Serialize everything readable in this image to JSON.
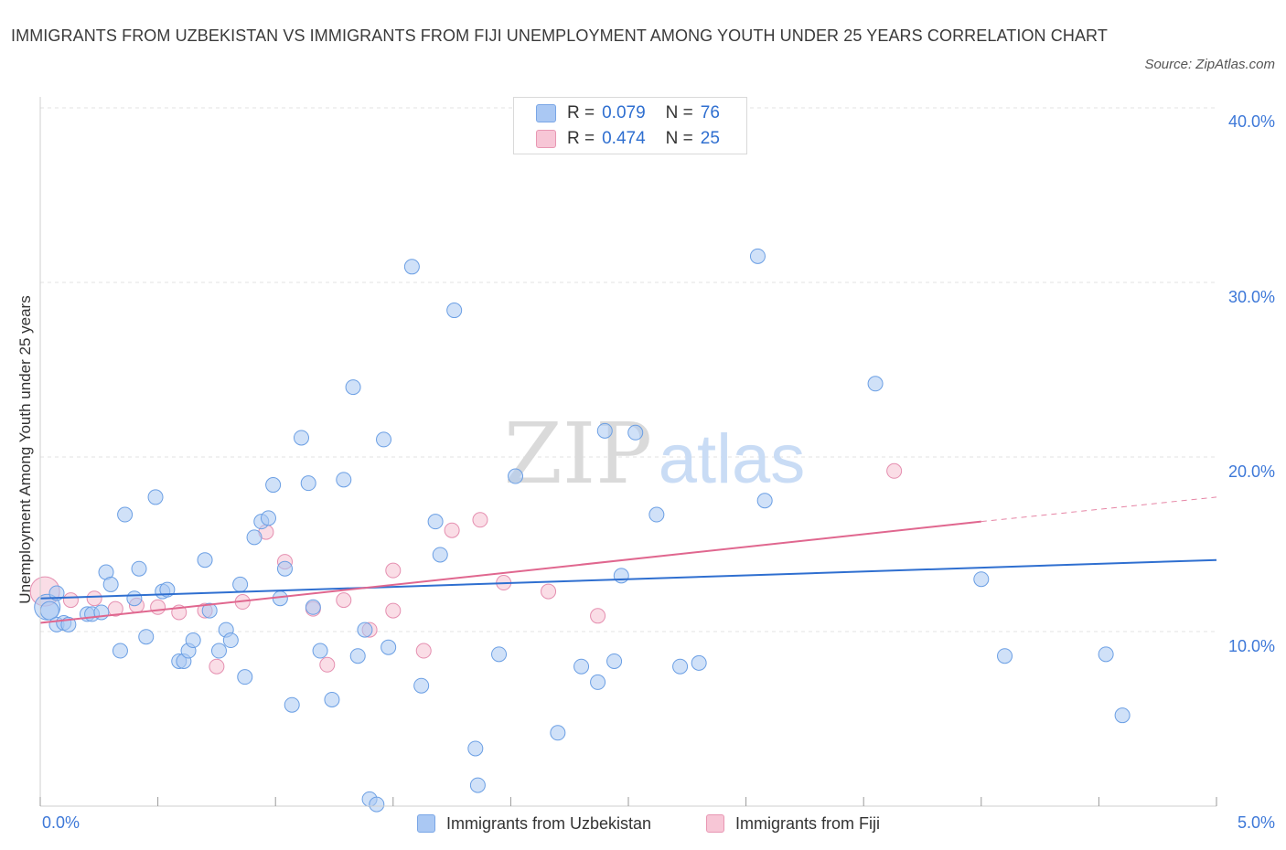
{
  "title": "IMMIGRANTS FROM UZBEKISTAN VS IMMIGRANTS FROM FIJI UNEMPLOYMENT AMONG YOUTH UNDER 25 YEARS CORRELATION CHART",
  "source": "Source: ZipAtlas.com",
  "watermark": {
    "zip": "ZIP",
    "atlas": "atlas"
  },
  "legend": {
    "rows": [
      {
        "r_label": "R =",
        "r_value": "0.079",
        "n_label": "N =",
        "n_value": "76",
        "color": "#aac8f3",
        "border": "#7aa6e6"
      },
      {
        "r_label": "R =",
        "r_value": "0.474",
        "n_label": "N =",
        "n_value": "25",
        "color": "#f7c6d6",
        "border": "#e897b3"
      }
    ]
  },
  "bottom_legend": {
    "uzbekistan": "Immigrants from Uzbekistan",
    "fiji": "Immigrants from Fiji"
  },
  "chart_data": {
    "type": "scatter",
    "title": "IMMIGRANTS FROM UZBEKISTAN VS IMMIGRANTS FROM FIJI UNEMPLOYMENT AMONG YOUTH UNDER 25 YEARS CORRELATION CHART",
    "xlabel": "",
    "ylabel": "Unemployment Among Youth under 25 years",
    "xlim": [
      0,
      5
    ],
    "ylim": [
      0,
      40
    ],
    "x_tick_labels": [
      "0.0%",
      "5.0%"
    ],
    "y_tick_labels": [
      "10.0%",
      "20.0%",
      "30.0%",
      "40.0%"
    ],
    "y_ticks": [
      10,
      20,
      30,
      40
    ],
    "grid": true,
    "legend_position": "top-center",
    "series": [
      {
        "name": "Immigrants from Uzbekistan",
        "color": "#6b9fe4",
        "fill": "#aac8f3",
        "trend_color": "#2f6fd0",
        "trend": {
          "x0": 0,
          "y0": 11.9,
          "x1": 5.0,
          "y1": 14.1
        },
        "points": [
          [
            0.03,
            11.4
          ],
          [
            0.04,
            11.2
          ],
          [
            0.07,
            12.2
          ],
          [
            0.07,
            10.4
          ],
          [
            0.1,
            10.5
          ],
          [
            0.12,
            10.4
          ],
          [
            0.2,
            11.0
          ],
          [
            0.22,
            11.0
          ],
          [
            0.26,
            11.1
          ],
          [
            0.28,
            13.4
          ],
          [
            0.3,
            12.7
          ],
          [
            0.34,
            8.9
          ],
          [
            0.36,
            16.7
          ],
          [
            0.4,
            11.9
          ],
          [
            0.42,
            13.6
          ],
          [
            0.45,
            9.7
          ],
          [
            0.49,
            17.7
          ],
          [
            0.52,
            12.3
          ],
          [
            0.54,
            12.4
          ],
          [
            0.59,
            8.3
          ],
          [
            0.61,
            8.3
          ],
          [
            0.63,
            8.9
          ],
          [
            0.65,
            9.5
          ],
          [
            0.7,
            14.1
          ],
          [
            0.72,
            11.2
          ],
          [
            0.76,
            8.9
          ],
          [
            0.79,
            10.1
          ],
          [
            0.81,
            9.5
          ],
          [
            0.85,
            12.7
          ],
          [
            0.87,
            7.4
          ],
          [
            0.91,
            15.4
          ],
          [
            0.94,
            16.3
          ],
          [
            0.97,
            16.5
          ],
          [
            0.99,
            18.4
          ],
          [
            1.02,
            11.9
          ],
          [
            1.04,
            13.6
          ],
          [
            1.07,
            5.8
          ],
          [
            1.11,
            21.1
          ],
          [
            1.14,
            18.5
          ],
          [
            1.16,
            11.4
          ],
          [
            1.19,
            8.9
          ],
          [
            1.24,
            6.1
          ],
          [
            1.29,
            18.7
          ],
          [
            1.33,
            24.0
          ],
          [
            1.35,
            8.6
          ],
          [
            1.38,
            10.1
          ],
          [
            1.4,
            0.4
          ],
          [
            1.43,
            0.1
          ],
          [
            1.46,
            21.0
          ],
          [
            1.48,
            9.1
          ],
          [
            1.58,
            30.9
          ],
          [
            1.62,
            6.9
          ],
          [
            1.68,
            16.3
          ],
          [
            1.7,
            14.4
          ],
          [
            1.76,
            28.4
          ],
          [
            1.85,
            3.3
          ],
          [
            1.86,
            1.2
          ],
          [
            1.95,
            8.7
          ],
          [
            2.02,
            18.9
          ],
          [
            2.2,
            4.2
          ],
          [
            2.3,
            8.0
          ],
          [
            2.37,
            7.1
          ],
          [
            2.4,
            21.5
          ],
          [
            2.44,
            8.3
          ],
          [
            2.47,
            13.2
          ],
          [
            2.53,
            21.4
          ],
          [
            2.62,
            16.7
          ],
          [
            2.72,
            8.0
          ],
          [
            2.8,
            8.2
          ],
          [
            3.05,
            31.5
          ],
          [
            3.08,
            17.5
          ],
          [
            3.55,
            24.2
          ],
          [
            4.0,
            13.0
          ],
          [
            4.1,
            8.6
          ],
          [
            4.53,
            8.7
          ],
          [
            4.6,
            5.2
          ]
        ]
      },
      {
        "name": "Immigrants from Fiji",
        "color": "#e58fb0",
        "fill": "#f7c6d6",
        "trend_color": "#e0678f",
        "trend": {
          "x0": 0,
          "y0": 10.5,
          "x1": 4.0,
          "y1": 16.3
        },
        "trend_dashed": {
          "x0": 4.0,
          "y0": 16.3,
          "x1": 5.0,
          "y1": 17.7
        },
        "points": [
          [
            0.02,
            12.3
          ],
          [
            0.13,
            11.8
          ],
          [
            0.23,
            11.9
          ],
          [
            0.32,
            11.3
          ],
          [
            0.41,
            11.5
          ],
          [
            0.5,
            11.4
          ],
          [
            0.59,
            11.1
          ],
          [
            0.7,
            11.2
          ],
          [
            0.75,
            8.0
          ],
          [
            0.86,
            11.7
          ],
          [
            0.96,
            15.7
          ],
          [
            1.04,
            14.0
          ],
          [
            1.16,
            11.3
          ],
          [
            1.22,
            8.1
          ],
          [
            1.29,
            11.8
          ],
          [
            1.4,
            10.1
          ],
          [
            1.5,
            13.5
          ],
          [
            1.5,
            11.2
          ],
          [
            1.63,
            8.9
          ],
          [
            1.75,
            15.8
          ],
          [
            1.87,
            16.4
          ],
          [
            1.97,
            12.8
          ],
          [
            2.16,
            12.3
          ],
          [
            2.37,
            10.9
          ],
          [
            3.63,
            19.2
          ]
        ]
      }
    ]
  }
}
